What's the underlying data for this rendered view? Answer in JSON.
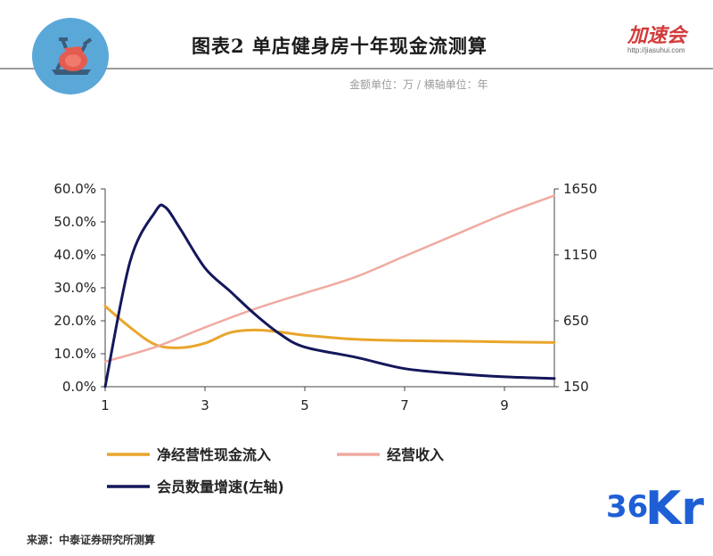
{
  "header": {
    "title": "图表2 单店健身房十年现金流测算",
    "units": "金额单位：万 / 横轴单位：年",
    "brand_text": "加速会",
    "brand_url": "http://jiasuhui.com",
    "icon": "exercise-bike-icon"
  },
  "footer": {
    "source": "来源：中泰证券研究所测算",
    "logo_number": "36",
    "logo_letters": "Kr"
  },
  "colors": {
    "net_cash_flow": "#e8a62c",
    "revenue": "#f0aaa0",
    "member_growth": "#14175a",
    "badge": "#5aa8d8",
    "brand": "#d23b3b",
    "kr_logo": "#1f5fd6"
  },
  "chart_data": {
    "type": "line",
    "x_ticks": [
      "1",
      "3",
      "5",
      "7",
      "9"
    ],
    "xlim": [
      1,
      10
    ],
    "y_left": {
      "ticks": [
        "60.0%",
        "50.0%",
        "40.0%",
        "30.0%",
        "20.0%",
        "10.0%",
        "0.0%"
      ],
      "ylim": [
        0,
        0.6
      ]
    },
    "y_right": {
      "ticks": [
        "1650",
        "1150",
        "650",
        "150"
      ],
      "ylim": [
        150,
        1650
      ]
    },
    "series": [
      {
        "name": "净经营性现金流入",
        "axis": "right",
        "x": [
          1,
          1.5,
          2,
          2.5,
          3,
          3.5,
          4,
          4.5,
          5,
          6,
          7,
          8,
          9,
          10
        ],
        "y": [
          760,
          600,
          470,
          445,
          480,
          560,
          580,
          565,
          540,
          510,
          500,
          495,
          490,
          485
        ]
      },
      {
        "name": "经营收入",
        "axis": "right",
        "x": [
          1,
          2,
          3,
          4,
          5,
          6,
          7,
          8,
          9,
          10
        ],
        "y": [
          340,
          450,
          600,
          740,
          860,
          980,
          1140,
          1300,
          1460,
          1600
        ]
      },
      {
        "name": "会员数量增速(左轴)",
        "axis": "left",
        "x": [
          1,
          1.5,
          2,
          2.2,
          2.5,
          3,
          3.5,
          4,
          4.5,
          5,
          6,
          7,
          8,
          9,
          10
        ],
        "y": [
          0.0,
          0.38,
          0.53,
          0.545,
          0.48,
          0.36,
          0.29,
          0.22,
          0.16,
          0.12,
          0.09,
          0.055,
          0.04,
          0.03,
          0.025
        ]
      }
    ],
    "legend": [
      "净经营性现金流入",
      "经营收入",
      "会员数量增速(左轴)"
    ],
    "legend_position": "bottom"
  }
}
